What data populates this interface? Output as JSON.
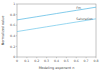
{
  "chart_data": {
    "type": "line",
    "x_label": "Modeling exponent n",
    "y_label": "Normalized value",
    "x": [
      0,
      0.1,
      0.2,
      0.3,
      0.4,
      0.5,
      0.6,
      0.7,
      0.8
    ],
    "series": [
      {
        "name": "Fm",
        "color": "#4fb6e3",
        "values": [
          0.7,
          0.73,
          0.76,
          0.79,
          0.82,
          0.85,
          0.88,
          0.91,
          0.94
        ]
      },
      {
        "name": "Saturation",
        "color": "#6cc6ea",
        "values": [
          0.48,
          0.51,
          0.54,
          0.57,
          0.6,
          0.63,
          0.66,
          0.69,
          0.72
        ]
      }
    ],
    "xlim": [
      0,
      0.8
    ],
    "xticks": [
      0,
      0.1,
      0.2,
      0.3,
      0.4,
      0.5,
      0.6,
      0.7,
      0.8
    ],
    "ylim": [
      0,
      1
    ],
    "yticks": [
      0,
      0.2,
      0.4,
      0.6,
      0.8,
      1
    ],
    "grid": false
  }
}
